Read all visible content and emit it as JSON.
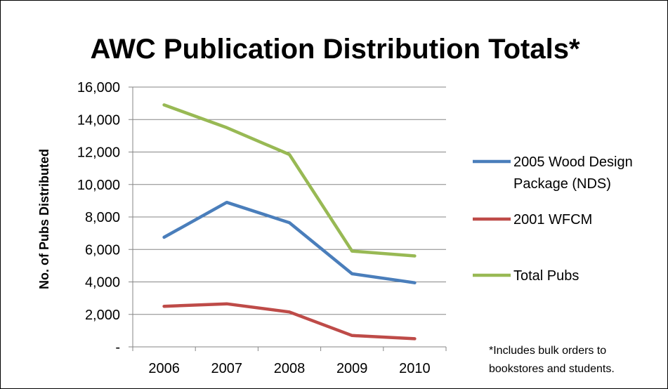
{
  "chart_data": {
    "type": "line",
    "title": "AWC Publication Distribution Totals*",
    "xlabel": "",
    "ylabel": "No. of Pubs Distributed",
    "categories": [
      "2006",
      "2007",
      "2008",
      "2009",
      "2010"
    ],
    "ylim": [
      0,
      16000
    ],
    "yticks": [
      {
        "value": 0,
        "label": "-"
      },
      {
        "value": 2000,
        "label": "2,000"
      },
      {
        "value": 4000,
        "label": "4,000"
      },
      {
        "value": 6000,
        "label": "6,000"
      },
      {
        "value": 8000,
        "label": "8,000"
      },
      {
        "value": 10000,
        "label": "10,000"
      },
      {
        "value": 12000,
        "label": "12,000"
      },
      {
        "value": 14000,
        "label": "14,000"
      },
      {
        "value": 16000,
        "label": "16,000"
      }
    ],
    "grid": true,
    "legend_position": "right",
    "series": [
      {
        "name_lines": [
          "2005 Wood Design",
          "Package (NDS)"
        ],
        "color": "#4a7ebb",
        "values": [
          6750,
          8900,
          7650,
          4500,
          3950
        ]
      },
      {
        "name_lines": [
          "2001 WFCM"
        ],
        "color": "#be4b48",
        "values": [
          2500,
          2650,
          2150,
          700,
          500
        ]
      },
      {
        "name_lines": [
          "Total Pubs"
        ],
        "color": "#98b954",
        "values": [
          14900,
          13500,
          11850,
          5900,
          5600
        ]
      }
    ],
    "annotation_lines": [
      "*Includes bulk orders to",
      "bookstores and students."
    ]
  }
}
